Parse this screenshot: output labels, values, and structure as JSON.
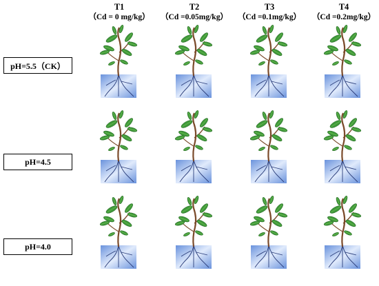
{
  "columns": [
    {
      "label": "T1",
      "sub": "（Cd = 0 mg/kg）"
    },
    {
      "label": "T2",
      "sub": "（Cd =0.05mg/kg）"
    },
    {
      "label": "T3",
      "sub": "（Cd =0.1mg/kg）"
    },
    {
      "label": "T4",
      "sub": "（Cd =0.2mg/kg）"
    }
  ],
  "rows": [
    {
      "label": "pH=5.5（CK）"
    },
    {
      "label": "pH=4.5"
    },
    {
      "label": "pH=4.0"
    }
  ],
  "colors": {
    "stem": "#7a4a2a",
    "leaf": "#3f9a3a",
    "leaf_light": "#7cc35a",
    "root_box": "#4f7fd6",
    "root_box_light": "#dbe7fb",
    "root": "#2a3d7a"
  },
  "icons": {
    "plant": "seedling-with-roots-icon"
  }
}
